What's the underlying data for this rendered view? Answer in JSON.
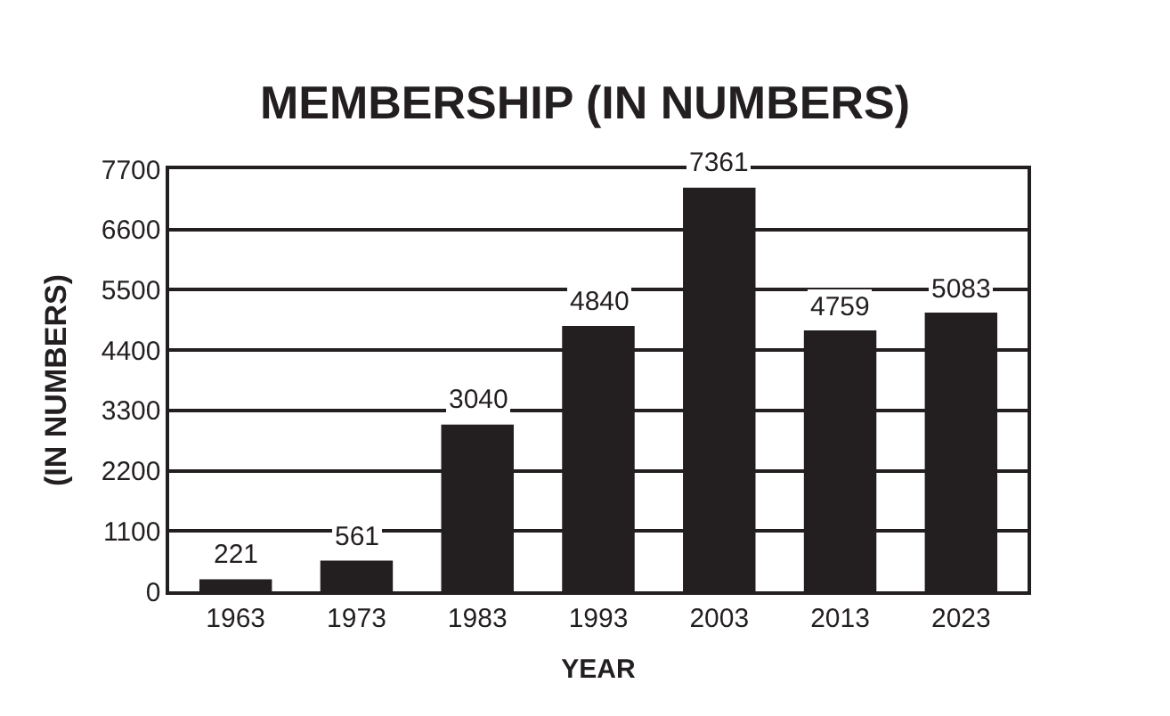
{
  "chart_data": {
    "type": "bar",
    "title": "MEMBERSHIP (IN NUMBERS)",
    "xlabel": "YEAR",
    "ylabel": "(IN NUMBERS)",
    "categories": [
      "1963",
      "1973",
      "1983",
      "1993",
      "2003",
      "2013",
      "2023"
    ],
    "values": [
      221,
      561,
      3040,
      4840,
      7361,
      4759,
      5083
    ],
    "color": "#231f20",
    "ylim": [
      0,
      7700
    ],
    "yticks": [
      0,
      1100,
      2200,
      3300,
      4400,
      5500,
      6600,
      7700
    ],
    "grid": "y",
    "data_labels": true
  }
}
